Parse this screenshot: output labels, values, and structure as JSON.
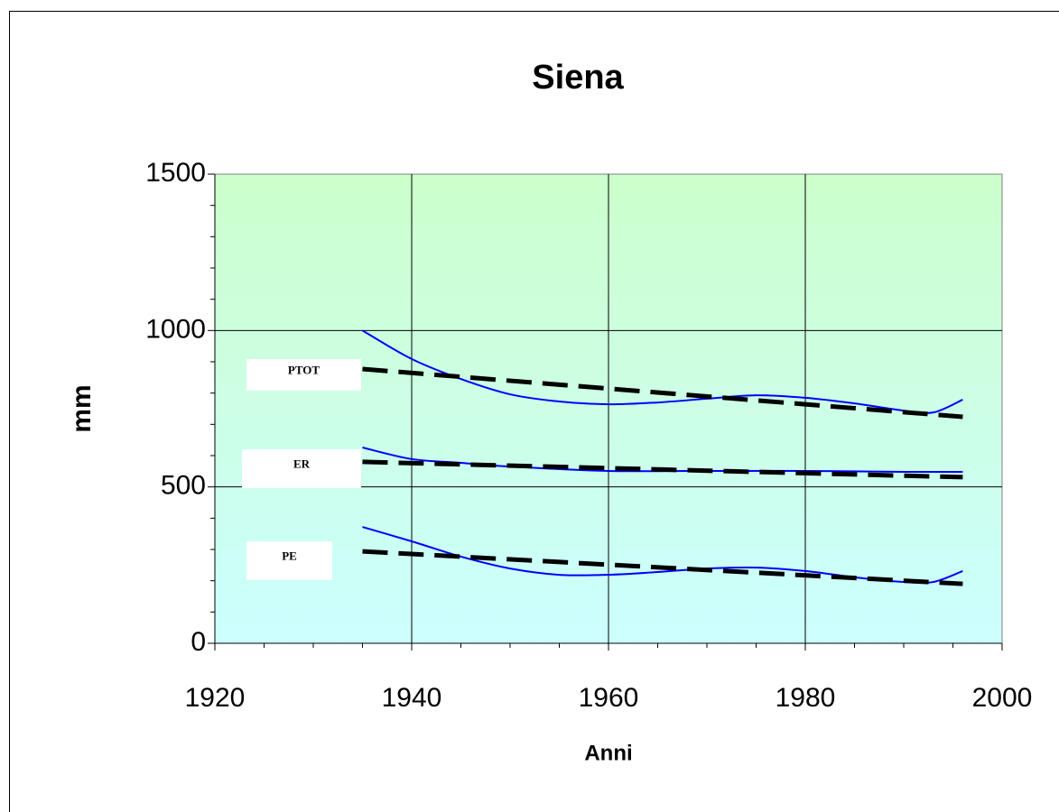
{
  "chart_data": {
    "type": "line",
    "title": "Siena",
    "xlabel": "Anni",
    "ylabel": "mm",
    "xlim": [
      1920,
      2000
    ],
    "xticks": [
      1920,
      1940,
      1960,
      1980,
      2000
    ],
    "xminorticks": [
      1925,
      1930,
      1935,
      1945,
      1950,
      1955,
      1965,
      1970,
      1975,
      1985,
      1990,
      1995
    ],
    "ylim": [
      0,
      1500
    ],
    "yticks": [
      0,
      500,
      1000,
      1500
    ],
    "yminorticks": [
      100,
      200,
      300,
      400,
      600,
      700,
      800,
      900,
      1100,
      1200,
      1300,
      1400
    ],
    "grid": true,
    "series": [
      {
        "color": "#0000ff",
        "style": "solid",
        "x": [
          1935,
          1940,
          1945,
          1950,
          1955,
          1960,
          1965,
          1970,
          1975,
          1980,
          1985,
          1990,
          1993,
          1996
        ],
        "values": [
          1000,
          909,
          845,
          796,
          773,
          764,
          770,
          782,
          793,
          785,
          767,
          744,
          738,
          779
        ]
      },
      {
        "color": "#000000",
        "style": "dashed",
        "x": [
          1935,
          1996
        ],
        "values": [
          877,
          724
        ]
      },
      {
        "color": "#0000ff",
        "style": "solid",
        "x": [
          1935,
          1940,
          1945,
          1950,
          1960,
          1970,
          1980,
          1990,
          1996
        ],
        "values": [
          626,
          589,
          577,
          565,
          551,
          551,
          551,
          548,
          548
        ]
      },
      {
        "color": "#000000",
        "style": "dashed",
        "x": [
          1935,
          1996
        ],
        "values": [
          580,
          531
        ]
      },
      {
        "color": "#0000ff",
        "style": "solid",
        "x": [
          1935,
          1940,
          1945,
          1950,
          1955,
          1960,
          1965,
          1970,
          1975,
          1980,
          1985,
          1990,
          1993,
          1996
        ],
        "values": [
          372,
          326,
          277,
          239,
          219,
          219,
          228,
          239,
          242,
          231,
          211,
          196,
          196,
          231
        ]
      },
      {
        "color": "#000000",
        "style": "dashed",
        "x": [
          1935,
          1996
        ],
        "values": [
          294,
          190
        ]
      }
    ],
    "annotations": [
      "PTOT",
      "ER",
      "PE"
    ]
  }
}
